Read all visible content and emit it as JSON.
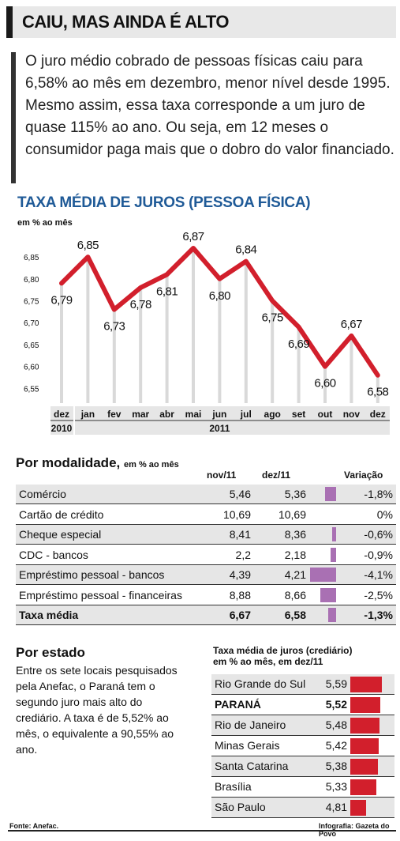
{
  "header": {
    "title": "CAIU, MAS AINDA É ALTO"
  },
  "intro": "O juro médio cobrado de pessoas físicas caiu para 6,58% ao mês em dezembro, menor nível desde 1995. Mesmo assim, essa taxa corresponde a um juro de quase 115% ao ano. Ou seja, em 12 meses o consumidor paga mais que o dobro do valor financiado.",
  "chart_data": {
    "type": "line",
    "title": "TAXA MÉDIA DE JUROS (PESSOA FÍSICA)",
    "ylabel": "em % ao mês",
    "categories": [
      "dez",
      "jan",
      "fev",
      "mar",
      "abr",
      "mai",
      "jun",
      "jul",
      "ago",
      "set",
      "out",
      "nov",
      "dez"
    ],
    "values": [
      6.79,
      6.85,
      6.73,
      6.78,
      6.81,
      6.87,
      6.8,
      6.84,
      6.75,
      6.69,
      6.6,
      6.67,
      6.58
    ],
    "value_labels": [
      "6,79",
      "6,85",
      "6,73",
      "6,78",
      "6,81",
      "6,87",
      "6,80",
      "6,84",
      "6,75",
      "6,69",
      "6,60",
      "6,67",
      "6,58"
    ],
    "y_ticks": [
      "6,85",
      "6,80",
      "6,75",
      "6,70",
      "6,65",
      "6,60",
      "6,55"
    ],
    "y_tick_values": [
      6.85,
      6.8,
      6.75,
      6.7,
      6.65,
      6.6,
      6.55
    ],
    "ylim": [
      6.52,
      6.87
    ],
    "years": [
      "2010",
      "2011"
    ],
    "color": "#d21f2c"
  },
  "modalidade": {
    "title": "Por modalidade,",
    "subtitle": "em % ao mês",
    "headers": [
      "nov/11",
      "dez/11",
      "Variação"
    ],
    "rows": [
      {
        "name": "Comércio",
        "nov": "5,46",
        "dez": "5,36",
        "var": "-1,8%",
        "var_value": -1.8
      },
      {
        "name": "Cartão de crédito",
        "nov": "10,69",
        "dez": "10,69",
        "var": "0%",
        "var_value": 0
      },
      {
        "name": "Cheque especial",
        "nov": "8,41",
        "dez": "8,36",
        "var": "-0,6%",
        "var_value": -0.6
      },
      {
        "name": "CDC - bancos",
        "nov": "2,2",
        "dez": "2,18",
        "var": "-0,9%",
        "var_value": -0.9
      },
      {
        "name": "Empréstimo pessoal - bancos",
        "nov": "4,39",
        "dez": "4,21",
        "var": "-4,1%",
        "var_value": -4.1
      },
      {
        "name": "Empréstimo pessoal - financeiras",
        "nov": "8,88",
        "dez": "8,66",
        "var": "-2,5%",
        "var_value": -2.5
      },
      {
        "name": "Taxa média",
        "nov": "6,67",
        "dez": "6,58",
        "var": "-1,3%",
        "var_value": -1.3,
        "bold": true
      }
    ],
    "bar_color": "#a970b3"
  },
  "estado": {
    "title": "Por estado",
    "text": "Entre os sete locais pesquisados pela Anefac, o Paraná tem o segundo juro mais alto do crediário. A taxa é de 5,52% ao mês, o equivalente a 90,55% ao ano.",
    "table_title_1": "Taxa média de juros (crediário)",
    "table_title_2": "em % ao mês, em dez/11",
    "rows": [
      {
        "name": "Rio Grande do Sul",
        "value": "5,59",
        "num": 5.59
      },
      {
        "name": "PARANÁ",
        "value": "5,52",
        "num": 5.52,
        "bold": true
      },
      {
        "name": "Rio de Janeiro",
        "value": "5,48",
        "num": 5.48
      },
      {
        "name": "Minas Gerais",
        "value": "5,42",
        "num": 5.42
      },
      {
        "name": "Santa Catarina",
        "value": "5,38",
        "num": 5.38
      },
      {
        "name": "Brasília",
        "value": "5,33",
        "num": 5.33
      },
      {
        "name": "São Paulo",
        "value": "4,81",
        "num": 4.81
      }
    ],
    "bar_color": "#d21f2c"
  },
  "footer": {
    "source": "Fonte: Anefac.",
    "credit": "Infografia: Gazeta do Povo"
  }
}
